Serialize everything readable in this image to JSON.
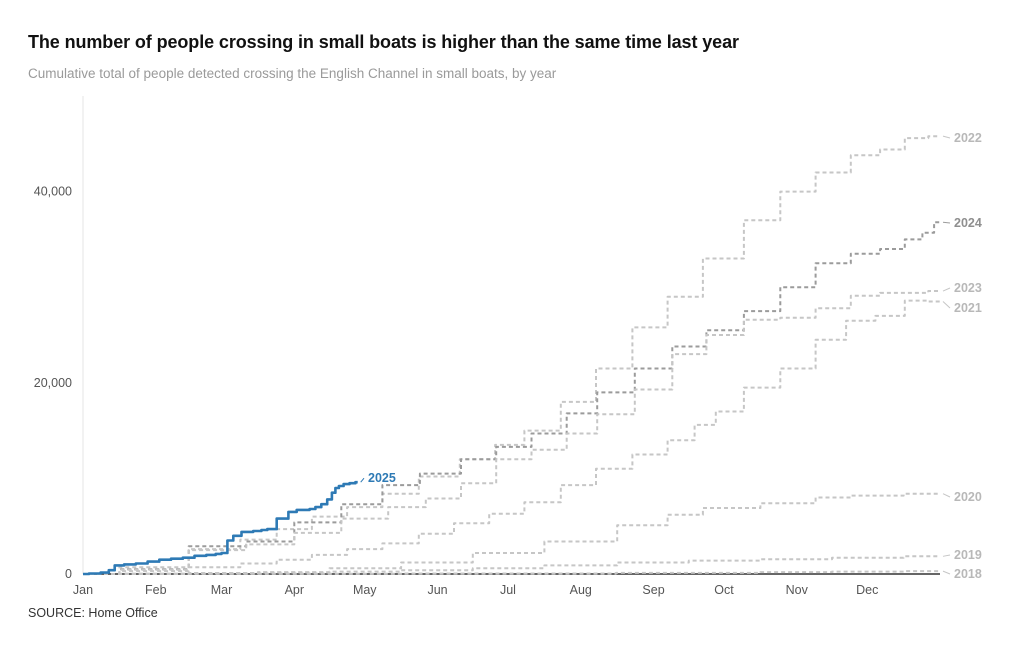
{
  "chart_data": {
    "type": "line",
    "title": "The number of people crossing in small boats is higher than the same time last year",
    "subtitle": "Cumulative total of people detected crossing the English Channel in small boats, by year",
    "source": "SOURCE: Home Office",
    "xlabel": "",
    "ylabel": "",
    "x_ticks": [
      "Jan",
      "Feb",
      "Mar",
      "Apr",
      "May",
      "Jun",
      "Jul",
      "Aug",
      "Sep",
      "Oct",
      "Nov",
      "Dec"
    ],
    "y_ticks": [
      "0",
      "20,000",
      "40,000"
    ],
    "y_tick_values": [
      0,
      20000,
      40000
    ],
    "ylim": [
      0,
      50000
    ],
    "grid": false,
    "x_unit": "day of year",
    "xlim": [
      0,
      365
    ],
    "colors": {
      "highlight": "#2e7ab5",
      "previous": "#9b9b9b",
      "other": "#c6c6c6",
      "baseline": "#333333"
    },
    "series": [
      {
        "name": "2022",
        "style": "other",
        "dashed": true,
        "x": [
          0,
          31,
          59,
          75,
          90,
          105,
          120,
          135,
          151,
          170,
          181,
          195,
          212,
          225,
          243,
          255,
          273,
          290,
          304,
          320,
          334,
          345,
          355,
          365
        ],
        "y": [
          0,
          700,
          2600,
          3600,
          4700,
          6000,
          7000,
          8400,
          10200,
          12000,
          13500,
          15000,
          18000,
          21500,
          25800,
          29000,
          33000,
          37000,
          40000,
          42000,
          43800,
          44400,
          45600,
          45800
        ]
      },
      {
        "name": "2024",
        "style": "previous",
        "dashed": true,
        "x": [
          0,
          31,
          59,
          80,
          100,
          120,
          135,
          152,
          170,
          182,
          200,
          212,
          226,
          244,
          258,
          273,
          290,
          304,
          320,
          334,
          345,
          355,
          360,
          365
        ],
        "y": [
          0,
          500,
          2900,
          3400,
          5400,
          7300,
          9300,
          10500,
          12000,
          13300,
          14700,
          16800,
          19000,
          21500,
          23800,
          25500,
          27500,
          30000,
          32500,
          33500,
          34000,
          35000,
          35700,
          36800
        ]
      },
      {
        "name": "2023",
        "style": "other",
        "dashed": true,
        "x": [
          0,
          31,
          59,
          80,
          100,
          120,
          140,
          152,
          170,
          182,
          200,
          212,
          226,
          244,
          258,
          273,
          290,
          304,
          320,
          334,
          345,
          355,
          365
        ],
        "y": [
          0,
          450,
          2500,
          3100,
          4300,
          5800,
          7000,
          7900,
          9500,
          12000,
          13000,
          14700,
          16700,
          19300,
          23000,
          25000,
          26600,
          26800,
          27800,
          29100,
          29400,
          29400,
          29600
        ]
      },
      {
        "name": "2021",
        "style": "other",
        "dashed": true,
        "x": [
          0,
          31,
          59,
          75,
          90,
          105,
          120,
          135,
          151,
          165,
          181,
          195,
          212,
          225,
          243,
          255,
          266,
          273,
          290,
          304,
          320,
          330,
          345,
          355,
          365
        ],
        "y": [
          0,
          300,
          700,
          1100,
          1500,
          2000,
          2600,
          3200,
          4200,
          5300,
          6300,
          7500,
          9300,
          11000,
          12500,
          14000,
          15600,
          17000,
          19500,
          21500,
          24500,
          26500,
          27000,
          28600,
          28500
        ]
      },
      {
        "name": "2020",
        "style": "other",
        "dashed": true,
        "x": [
          0,
          31,
          59,
          90,
          120,
          151,
          181,
          212,
          243,
          255,
          273,
          304,
          320,
          334,
          365
        ],
        "y": [
          0,
          20,
          100,
          200,
          600,
          1200,
          2200,
          3400,
          5100,
          6200,
          6900,
          7400,
          8000,
          8200,
          8400
        ]
      },
      {
        "name": "2019",
        "style": "other",
        "dashed": true,
        "x": [
          0,
          31,
          59,
          90,
          120,
          151,
          181,
          212,
          243,
          273,
          304,
          334,
          365
        ],
        "y": [
          0,
          30,
          60,
          150,
          250,
          400,
          600,
          900,
          1200,
          1400,
          1550,
          1700,
          1850
        ]
      },
      {
        "name": "2018",
        "style": "other",
        "dashed": true,
        "x": [
          0,
          90,
          181,
          273,
          304,
          334,
          365
        ],
        "y": [
          0,
          20,
          50,
          120,
          200,
          250,
          300
        ]
      },
      {
        "name": "2025",
        "style": "highlight",
        "dashed": false,
        "x": [
          0,
          5,
          10,
          12,
          15,
          20,
          25,
          30,
          35,
          40,
          45,
          50,
          55,
          58,
          60,
          63,
          65,
          70,
          75,
          77,
          80,
          85,
          90,
          92,
          95,
          98,
          100,
          103,
          105,
          107,
          108,
          110,
          112,
          115,
          117
        ],
        "y": [
          0,
          50,
          150,
          400,
          900,
          1000,
          1100,
          1300,
          1500,
          1600,
          1700,
          1900,
          2000,
          2100,
          2200,
          3500,
          4000,
          4400,
          4500,
          4600,
          4700,
          5800,
          6500,
          6700,
          6700,
          6800,
          7000,
          7300,
          7800,
          8500,
          9000,
          9200,
          9400,
          9500,
          9600
        ]
      }
    ],
    "end_labels": [
      "2022",
      "2024",
      "2023",
      "2021",
      "2020",
      "2019",
      "2018",
      "2025"
    ]
  }
}
